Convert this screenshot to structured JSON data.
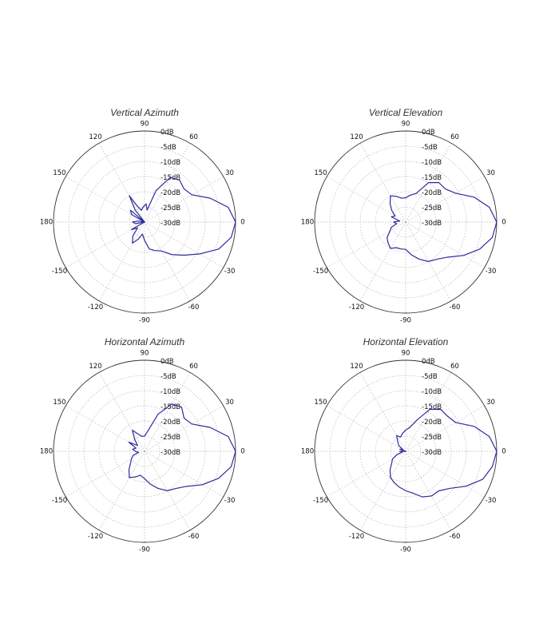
{
  "chart_data": [
    {
      "type": "polar-line",
      "title": "Vertical Azimuth",
      "angle_ticks": [
        "0",
        "30",
        "60",
        "90",
        "120",
        "150",
        "180",
        "-150",
        "-120",
        "-90",
        "-60",
        "-30"
      ],
      "radial_ticks": [
        "0dB",
        "-5dB",
        "-10dB",
        "-15dB",
        "-20dB",
        "-25dB",
        "-30dB"
      ],
      "rlim": [
        -30,
        0
      ],
      "grid": true,
      "series": [
        {
          "color": "#2b2b9e",
          "points": [
            [
              0,
              0
            ],
            [
              10,
              -2
            ],
            [
              20,
              -7
            ],
            [
              30,
              -12
            ],
            [
              40,
              -13
            ],
            [
              50,
              -12
            ],
            [
              60,
              -13
            ],
            [
              70,
              -19
            ],
            [
              78,
              -26
            ],
            [
              85,
              -24
            ],
            [
              95,
              -25
            ],
            [
              105,
              -26
            ],
            [
              115,
              -24
            ],
            [
              120,
              -20
            ],
            [
              128,
              -25
            ],
            [
              132,
              -30
            ],
            [
              140,
              -24
            ],
            [
              150,
              -25
            ],
            [
              160,
              -30
            ],
            [
              170,
              -28
            ],
            [
              180,
              -26
            ],
            [
              190,
              -27
            ],
            [
              200,
              -30
            ],
            [
              210,
              -25
            ],
            [
              220,
              -27
            ],
            [
              230,
              -24
            ],
            [
              240,
              -22
            ],
            [
              250,
              -24
            ],
            [
              260,
              -26
            ],
            [
              270,
              -24
            ],
            [
              280,
              -21
            ],
            [
              290,
              -20
            ],
            [
              300,
              -19
            ],
            [
              310,
              -16
            ],
            [
              320,
              -13
            ],
            [
              330,
              -9
            ],
            [
              340,
              -4
            ],
            [
              350,
              -1
            ]
          ]
        }
      ]
    },
    {
      "type": "polar-line",
      "title": "Vertical Elevation",
      "angle_ticks": [
        "0",
        "30",
        "60",
        "90",
        "120",
        "150",
        "180",
        "-150",
        "-120",
        "-90",
        "-60",
        "-30"
      ],
      "radial_ticks": [
        "0dB",
        "-5dB",
        "-10dB",
        "-15dB",
        "-20dB",
        "-25dB",
        "-30dB"
      ],
      "rlim": [
        -30,
        0
      ],
      "grid": true,
      "series": [
        {
          "color": "#2b2b9e",
          "points": [
            [
              0,
              0
            ],
            [
              10,
              -2
            ],
            [
              20,
              -6
            ],
            [
              30,
              -11
            ],
            [
              40,
              -13
            ],
            [
              50,
              -13
            ],
            [
              60,
              -15
            ],
            [
              70,
              -20
            ],
            [
              80,
              -21
            ],
            [
              90,
              -22
            ],
            [
              100,
              -22
            ],
            [
              110,
              -21
            ],
            [
              120,
              -20
            ],
            [
              130,
              -22
            ],
            [
              140,
              -24
            ],
            [
              150,
              -26
            ],
            [
              160,
              -25
            ],
            [
              170,
              -28
            ],
            [
              180,
              -26
            ],
            [
              190,
              -27
            ],
            [
              200,
              -25
            ],
            [
              210,
              -24
            ],
            [
              220,
              -22
            ],
            [
              230,
              -21
            ],
            [
              240,
              -20
            ],
            [
              250,
              -21
            ],
            [
              260,
              -21
            ],
            [
              270,
              -21
            ],
            [
              280,
              -19
            ],
            [
              290,
              -17
            ],
            [
              300,
              -15
            ],
            [
              310,
              -14
            ],
            [
              320,
              -12
            ],
            [
              330,
              -8
            ],
            [
              340,
              -4
            ],
            [
              350,
              -1
            ]
          ]
        }
      ]
    },
    {
      "type": "polar-line",
      "title": "Horizontal Azimuth",
      "angle_ticks": [
        "0",
        "30",
        "60",
        "90",
        "120",
        "150",
        "180",
        "-150",
        "-120",
        "-90",
        "-60",
        "-30"
      ],
      "radial_ticks": [
        "0dB",
        "-5dB",
        "-10dB",
        "-15dB",
        "-20dB",
        "-25dB",
        "-30dB"
      ],
      "rlim": [
        -30,
        0
      ],
      "grid": true,
      "series": [
        {
          "color": "#2b2b9e",
          "points": [
            [
              0,
              0
            ],
            [
              10,
              -2
            ],
            [
              20,
              -7
            ],
            [
              30,
              -12
            ],
            [
              40,
              -13
            ],
            [
              50,
              -11
            ],
            [
              60,
              -12
            ],
            [
              70,
              -17
            ],
            [
              80,
              -23
            ],
            [
              90,
              -25
            ],
            [
              100,
              -25
            ],
            [
              110,
              -24
            ],
            [
              120,
              -22
            ],
            [
              130,
              -25
            ],
            [
              140,
              -27
            ],
            [
              150,
              -24
            ],
            [
              160,
              -27
            ],
            [
              170,
              -26
            ],
            [
              180,
              -27
            ],
            [
              190,
              -28
            ],
            [
              200,
              -26
            ],
            [
              210,
              -25
            ],
            [
              220,
              -24
            ],
            [
              230,
              -22
            ],
            [
              240,
              -20
            ],
            [
              250,
              -21
            ],
            [
              260,
              -22
            ],
            [
              270,
              -21
            ],
            [
              280,
              -19
            ],
            [
              290,
              -17
            ],
            [
              300,
              -15
            ],
            [
              310,
              -14
            ],
            [
              320,
              -12
            ],
            [
              330,
              -8
            ],
            [
              340,
              -4
            ],
            [
              350,
              -1
            ]
          ]
        }
      ]
    },
    {
      "type": "polar-line",
      "title": "Horizontal Elevation",
      "angle_ticks": [
        "0",
        "30",
        "60",
        "90",
        "120",
        "150",
        "180",
        "-150",
        "-120",
        "-90",
        "-60",
        "-30"
      ],
      "radial_ticks": [
        "0dB",
        "-5dB",
        "-10dB",
        "-15dB",
        "-20dB",
        "-25dB",
        "-30dB"
      ],
      "rlim": [
        -30,
        0
      ],
      "grid": true,
      "series": [
        {
          "color": "#2b2b9e",
          "points": [
            [
              0,
              0
            ],
            [
              10,
              -2
            ],
            [
              20,
              -6
            ],
            [
              30,
              -11
            ],
            [
              40,
              -12
            ],
            [
              50,
              -12
            ],
            [
              60,
              -14
            ],
            [
              70,
              -19
            ],
            [
              80,
              -22
            ],
            [
              90,
              -23
            ],
            [
              100,
              -24
            ],
            [
              110,
              -25
            ],
            [
              120,
              -24
            ],
            [
              130,
              -26
            ],
            [
              140,
              -27
            ],
            [
              150,
              -29
            ],
            [
              160,
              -28
            ],
            [
              170,
              -30
            ],
            [
              180,
              -28
            ],
            [
              190,
              -29
            ],
            [
              200,
              -27
            ],
            [
              210,
              -25
            ],
            [
              220,
              -24
            ],
            [
              230,
              -22
            ],
            [
              240,
              -20
            ],
            [
              250,
              -19
            ],
            [
              260,
              -18
            ],
            [
              270,
              -17
            ],
            [
              280,
              -16
            ],
            [
              290,
              -14
            ],
            [
              300,
              -13
            ],
            [
              310,
              -13
            ],
            [
              320,
              -11
            ],
            [
              330,
              -7
            ],
            [
              340,
              -3
            ],
            [
              350,
              -1
            ]
          ]
        }
      ]
    }
  ]
}
